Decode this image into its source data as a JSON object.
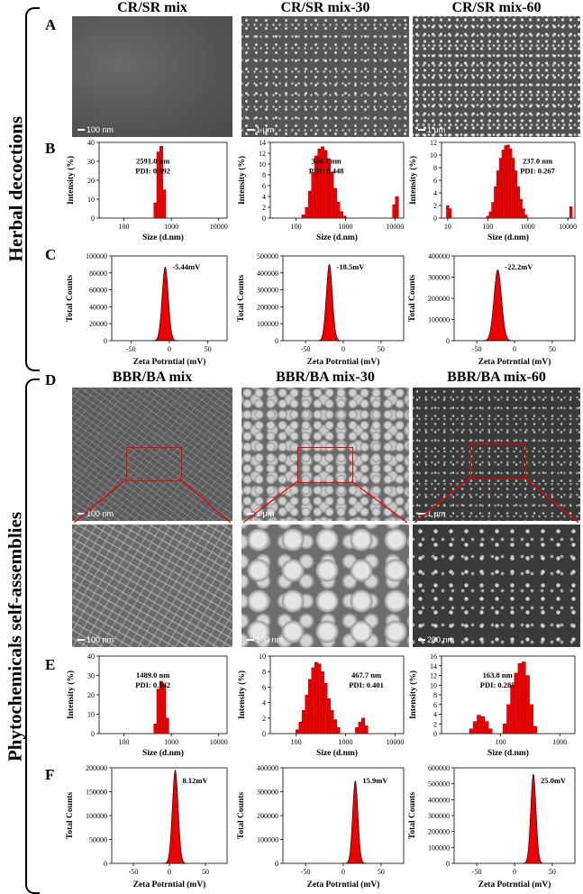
{
  "side_labels": {
    "top": "Herbal decoctions",
    "bottom": "Phytochemicals self-assemblies"
  },
  "panel_letters": {
    "A": "A",
    "B": "B",
    "C": "C",
    "D": "D",
    "E": "E",
    "F": "F"
  },
  "col_titles_top": [
    "CR/SR mix",
    "CR/SR mix-30",
    "CR/SR mix-60"
  ],
  "col_titles_bottom": [
    "BBR/BA mix",
    "BBR/BA mix-30",
    "BBR/BA mix-60"
  ],
  "scale_bars": {
    "A": [
      "100 nm",
      "1 μm",
      "1 μm"
    ],
    "D_top": [
      "100 nm",
      "1 μm",
      "1 μm"
    ],
    "D_bottom": [
      "100 nm",
      "100 nm",
      "200 nm"
    ]
  },
  "colors": {
    "bar_fill": "#ee0000",
    "bar_stroke": "#7a0000",
    "sem_bg": "#5a5a5a"
  },
  "chart_data": [
    {
      "id": "B1",
      "type": "bar",
      "xscale": "log",
      "xlabel": "Size (d.nm)",
      "ylabel": "Intensity (%)",
      "xlim": [
        30,
        15000
      ],
      "ylim": [
        0,
        40
      ],
      "xticks": [
        100,
        1000,
        10000
      ],
      "yticks": [
        0,
        10,
        20,
        30,
        40
      ],
      "annotation": [
        "2591.0 nm",
        "PDI: 0.992"
      ],
      "x": [
        460,
        531,
        615,
        712
      ],
      "values": [
        8,
        35,
        38,
        15
      ]
    },
    {
      "id": "B2",
      "type": "bar",
      "xscale": "log",
      "xlabel": "Size (d.nm)",
      "ylabel": "Intensity (%)",
      "xlim": [
        30,
        15000
      ],
      "ylim": [
        0,
        14
      ],
      "xticks": [
        100,
        1000,
        10000
      ],
      "yticks": [
        0,
        2,
        4,
        6,
        8,
        10,
        12,
        14
      ],
      "annotation": [
        "324.7 nm",
        "PDI: 0.448"
      ],
      "x": [
        140,
        164,
        190,
        220,
        255,
        295,
        342,
        396,
        459,
        531,
        615,
        712,
        825,
        955,
        9600,
        11000
      ],
      "values": [
        0.6,
        2,
        5,
        8.5,
        11.5,
        12.8,
        13.2,
        12.5,
        11,
        8.5,
        5.5,
        3,
        1.2,
        0.4,
        2.5,
        4
      ]
    },
    {
      "id": "B3",
      "type": "bar",
      "xscale": "log",
      "xlabel": "Size (d.nm)",
      "ylabel": "Intensity (%)",
      "xlim": [
        7,
        15000
      ],
      "ylim": [
        0,
        12
      ],
      "xticks": [
        10,
        100,
        1000,
        10000
      ],
      "yticks": [
        0,
        2,
        4,
        6,
        8,
        10,
        12
      ],
      "annotation": [
        "237.0 nm",
        "PDI: 0.267"
      ],
      "x": [
        10,
        11.5,
        100,
        116,
        134,
        156,
        180,
        209,
        242,
        280,
        325,
        376,
        435,
        504,
        584,
        676,
        782,
        906,
        12000
      ],
      "values": [
        2,
        1.5,
        0.3,
        1,
        2.5,
        5,
        7.5,
        9.5,
        10.8,
        11.5,
        11.6,
        11,
        9.5,
        7.5,
        5,
        3,
        1.5,
        0.5,
        1.8
      ]
    },
    {
      "id": "C1",
      "type": "area",
      "xlabel": "Zeta Potrntial (mV)",
      "ylabel": "Total Counts",
      "xlim": [
        -75,
        75
      ],
      "ylim": [
        0,
        100000
      ],
      "xticks": [
        -50,
        0,
        50
      ],
      "yticks": [
        0,
        20000,
        40000,
        60000,
        80000,
        100000
      ],
      "annotation": [
        "-5.44mV"
      ],
      "peak": -5.44,
      "height": 87000,
      "sigma": 4
    },
    {
      "id": "C2",
      "type": "area",
      "xlabel": "Zeta Potrntial (mV)",
      "ylabel": "Total Counts",
      "xlim": [
        -80,
        80
      ],
      "ylim": [
        0,
        500000
      ],
      "xticks": [
        -50,
        0,
        50
      ],
      "yticks": [
        0,
        100000,
        200000,
        300000,
        400000,
        500000
      ],
      "annotation": [
        "-18.5mV"
      ],
      "peak": -18.5,
      "height": 450000,
      "sigma": 4
    },
    {
      "id": "C3",
      "type": "area",
      "xlabel": "Zeta Potrntial (mV)",
      "ylabel": "Total Counts",
      "xlim": [
        -80,
        80
      ],
      "ylim": [
        0,
        400000
      ],
      "xticks": [
        -50,
        0,
        50
      ],
      "yticks": [
        0,
        100000,
        200000,
        300000,
        400000
      ],
      "annotation": [
        "-22.2mV"
      ],
      "peak": -22.2,
      "height": 335000,
      "sigma": 5
    },
    {
      "id": "E1",
      "type": "bar",
      "xscale": "log",
      "xlabel": "Size (d.nm)",
      "ylabel": "Intensity (%)",
      "xlim": [
        30,
        15000
      ],
      "ylim": [
        0,
        40
      ],
      "xticks": [
        100,
        1000,
        10000
      ],
      "yticks": [
        0,
        10,
        20,
        30,
        40
      ],
      "annotation": [
        "1489.0 nm",
        "PDI: 0.582"
      ],
      "x": [
        459,
        531,
        615,
        712,
        825
      ],
      "values": [
        5,
        23,
        27,
        25,
        8
      ]
    },
    {
      "id": "E2",
      "type": "bar",
      "xscale": "log",
      "xlabel": "Size (d.nm)",
      "ylabel": "Intensity (%)",
      "xlim": [
        30,
        15000
      ],
      "ylim": [
        0,
        10
      ],
      "xticks": [
        100,
        1000,
        10000
      ],
      "yticks": [
        0,
        2,
        4,
        6,
        8,
        10
      ],
      "annotation": [
        "467.7 nm",
        "PDI: 0.401"
      ],
      "x": [
        106,
        122,
        142,
        164,
        190,
        220,
        255,
        295,
        342,
        396,
        459,
        531,
        615,
        712,
        1700,
        1970,
        2280,
        2640
      ],
      "values": [
        0.5,
        1.5,
        3,
        5,
        7,
        8.5,
        9.2,
        9,
        8,
        6.5,
        4.5,
        3,
        1.8,
        0.8,
        0.8,
        1.5,
        2,
        1
      ]
    },
    {
      "id": "E3",
      "type": "bar",
      "xscale": "log",
      "xlabel": "Size (d.nm)",
      "ylabel": "Intensity (%)",
      "xlim": [
        10,
        1800
      ],
      "ylim": [
        0,
        16
      ],
      "xticks": [
        100,
        1000
      ],
      "yticks": [
        0,
        2,
        4,
        6,
        8,
        10,
        12,
        14,
        16
      ],
      "annotation": [
        "163.8 nm",
        "PDI: 0.285"
      ],
      "x": [
        32,
        37,
        43,
        50,
        58,
        67,
        118,
        137,
        158,
        183,
        212,
        246,
        285,
        330,
        382
      ],
      "values": [
        1,
        2.5,
        3.8,
        3.5,
        2.5,
        1,
        2,
        6,
        10,
        12.5,
        14.5,
        14.8,
        12,
        6,
        1.5
      ]
    },
    {
      "id": "F1",
      "type": "area",
      "xlabel": "Zeta Potrntial (mV)",
      "ylabel": "Total Counts",
      "xlim": [
        -80,
        80
      ],
      "ylim": [
        0,
        200000
      ],
      "xticks": [
        -50,
        0,
        50
      ],
      "yticks": [
        0,
        50000,
        100000,
        150000,
        200000
      ],
      "annotation": [
        "8.12mV"
      ],
      "peak": 8.12,
      "height": 195000,
      "sigma": 4
    },
    {
      "id": "F2",
      "type": "area",
      "xlabel": "Zeta Potrntial (mV)",
      "ylabel": "Total Counts",
      "xlim": [
        -80,
        80
      ],
      "ylim": [
        0,
        400000
      ],
      "xticks": [
        -50,
        0,
        50
      ],
      "yticks": [
        0,
        100000,
        200000,
        300000,
        400000
      ],
      "annotation": [
        "15.9mV"
      ],
      "peak": 15.9,
      "height": 345000,
      "sigma": 3.5
    },
    {
      "id": "F3",
      "type": "area",
      "xlabel": "Zeta Potrntial (mV)",
      "ylabel": "Total Counts",
      "xlim": [
        -80,
        80
      ],
      "ylim": [
        0,
        600000
      ],
      "xticks": [
        -50,
        0,
        50
      ],
      "yticks": [
        0,
        100000,
        200000,
        300000,
        400000,
        500000,
        600000
      ],
      "annotation": [
        "25.0mV"
      ],
      "peak": 25.0,
      "height": 560000,
      "sigma": 3.5
    }
  ]
}
